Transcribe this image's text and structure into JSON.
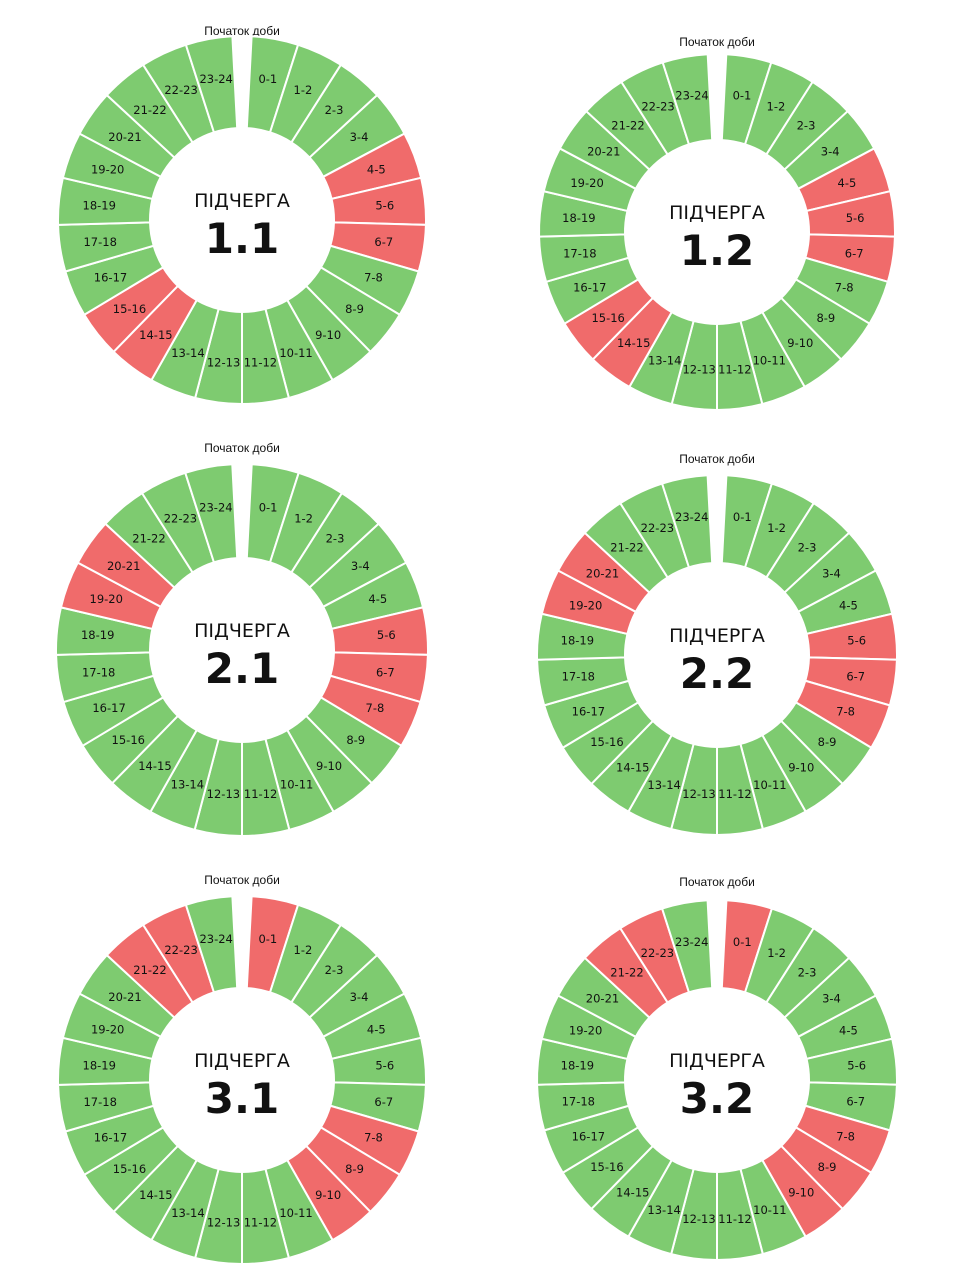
{
  "colors": {
    "on": "#7ecb70",
    "off": "#f06b6b",
    "gap": "#ffffff"
  },
  "start_label": "Початок доби",
  "group_word": "ПІДЧЕРГА",
  "hour_labels": [
    "0-1",
    "1-2",
    "2-3",
    "3-4",
    "4-5",
    "5-6",
    "6-7",
    "7-8",
    "8-9",
    "9-10",
    "10-11",
    "11-12",
    "12-13",
    "13-14",
    "14-15",
    "15-16",
    "16-17",
    "17-18",
    "18-19",
    "19-20",
    "20-21",
    "21-22",
    "22-23",
    "23-24"
  ],
  "wheels": [
    {
      "name": "1.1",
      "off_hours": [
        "4-5",
        "5-6",
        "6-7",
        "14-15",
        "15-16"
      ]
    },
    {
      "name": "1.2",
      "off_hours": [
        "4-5",
        "5-6",
        "6-7",
        "14-15",
        "15-16"
      ]
    },
    {
      "name": "2.1",
      "off_hours": [
        "5-6",
        "6-7",
        "7-8",
        "19-20",
        "20-21"
      ]
    },
    {
      "name": "2.2",
      "off_hours": [
        "5-6",
        "6-7",
        "7-8",
        "19-20",
        "20-21"
      ]
    },
    {
      "name": "3.1",
      "off_hours": [
        "0-1",
        "7-8",
        "8-9",
        "9-10",
        "21-22",
        "22-23"
      ]
    },
    {
      "name": "3.2",
      "off_hours": [
        "0-1",
        "7-8",
        "8-9",
        "9-10",
        "21-22",
        "22-23"
      ]
    }
  ]
}
